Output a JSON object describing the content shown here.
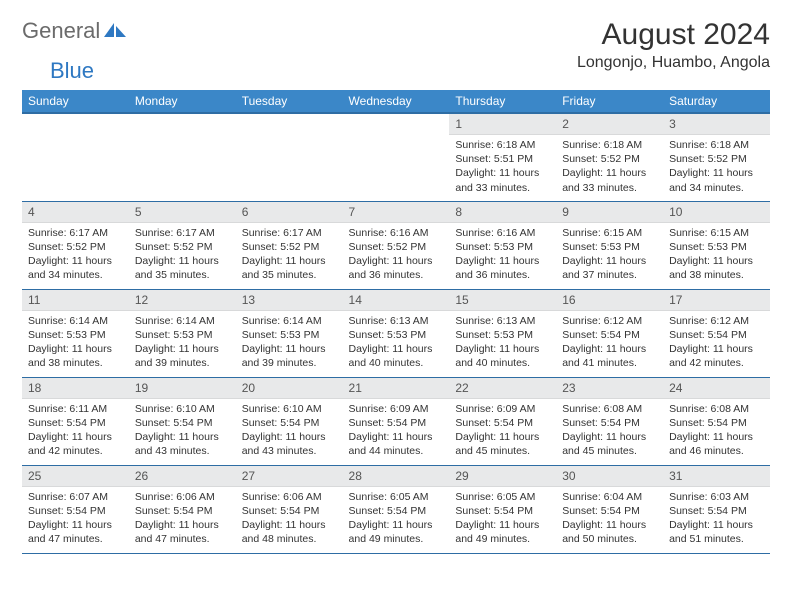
{
  "logo": {
    "gray": "General",
    "blue": "Blue"
  },
  "title": "August 2024",
  "location": "Longonjo, Huambo, Angola",
  "colors": {
    "header_bg": "#3b87c8",
    "border": "#2e6da4",
    "daynum_bg": "#e8e9ea"
  },
  "weekdays": [
    "Sunday",
    "Monday",
    "Tuesday",
    "Wednesday",
    "Thursday",
    "Friday",
    "Saturday"
  ],
  "weeks": [
    [
      {
        "n": "",
        "sr": "",
        "ss": "",
        "dl": ""
      },
      {
        "n": "",
        "sr": "",
        "ss": "",
        "dl": ""
      },
      {
        "n": "",
        "sr": "",
        "ss": "",
        "dl": ""
      },
      {
        "n": "",
        "sr": "",
        "ss": "",
        "dl": ""
      },
      {
        "n": "1",
        "sr": "Sunrise: 6:18 AM",
        "ss": "Sunset: 5:51 PM",
        "dl": "Daylight: 11 hours and 33 minutes."
      },
      {
        "n": "2",
        "sr": "Sunrise: 6:18 AM",
        "ss": "Sunset: 5:52 PM",
        "dl": "Daylight: 11 hours and 33 minutes."
      },
      {
        "n": "3",
        "sr": "Sunrise: 6:18 AM",
        "ss": "Sunset: 5:52 PM",
        "dl": "Daylight: 11 hours and 34 minutes."
      }
    ],
    [
      {
        "n": "4",
        "sr": "Sunrise: 6:17 AM",
        "ss": "Sunset: 5:52 PM",
        "dl": "Daylight: 11 hours and 34 minutes."
      },
      {
        "n": "5",
        "sr": "Sunrise: 6:17 AM",
        "ss": "Sunset: 5:52 PM",
        "dl": "Daylight: 11 hours and 35 minutes."
      },
      {
        "n": "6",
        "sr": "Sunrise: 6:17 AM",
        "ss": "Sunset: 5:52 PM",
        "dl": "Daylight: 11 hours and 35 minutes."
      },
      {
        "n": "7",
        "sr": "Sunrise: 6:16 AM",
        "ss": "Sunset: 5:52 PM",
        "dl": "Daylight: 11 hours and 36 minutes."
      },
      {
        "n": "8",
        "sr": "Sunrise: 6:16 AM",
        "ss": "Sunset: 5:53 PM",
        "dl": "Daylight: 11 hours and 36 minutes."
      },
      {
        "n": "9",
        "sr": "Sunrise: 6:15 AM",
        "ss": "Sunset: 5:53 PM",
        "dl": "Daylight: 11 hours and 37 minutes."
      },
      {
        "n": "10",
        "sr": "Sunrise: 6:15 AM",
        "ss": "Sunset: 5:53 PM",
        "dl": "Daylight: 11 hours and 38 minutes."
      }
    ],
    [
      {
        "n": "11",
        "sr": "Sunrise: 6:14 AM",
        "ss": "Sunset: 5:53 PM",
        "dl": "Daylight: 11 hours and 38 minutes."
      },
      {
        "n": "12",
        "sr": "Sunrise: 6:14 AM",
        "ss": "Sunset: 5:53 PM",
        "dl": "Daylight: 11 hours and 39 minutes."
      },
      {
        "n": "13",
        "sr": "Sunrise: 6:14 AM",
        "ss": "Sunset: 5:53 PM",
        "dl": "Daylight: 11 hours and 39 minutes."
      },
      {
        "n": "14",
        "sr": "Sunrise: 6:13 AM",
        "ss": "Sunset: 5:53 PM",
        "dl": "Daylight: 11 hours and 40 minutes."
      },
      {
        "n": "15",
        "sr": "Sunrise: 6:13 AM",
        "ss": "Sunset: 5:53 PM",
        "dl": "Daylight: 11 hours and 40 minutes."
      },
      {
        "n": "16",
        "sr": "Sunrise: 6:12 AM",
        "ss": "Sunset: 5:54 PM",
        "dl": "Daylight: 11 hours and 41 minutes."
      },
      {
        "n": "17",
        "sr": "Sunrise: 6:12 AM",
        "ss": "Sunset: 5:54 PM",
        "dl": "Daylight: 11 hours and 42 minutes."
      }
    ],
    [
      {
        "n": "18",
        "sr": "Sunrise: 6:11 AM",
        "ss": "Sunset: 5:54 PM",
        "dl": "Daylight: 11 hours and 42 minutes."
      },
      {
        "n": "19",
        "sr": "Sunrise: 6:10 AM",
        "ss": "Sunset: 5:54 PM",
        "dl": "Daylight: 11 hours and 43 minutes."
      },
      {
        "n": "20",
        "sr": "Sunrise: 6:10 AM",
        "ss": "Sunset: 5:54 PM",
        "dl": "Daylight: 11 hours and 43 minutes."
      },
      {
        "n": "21",
        "sr": "Sunrise: 6:09 AM",
        "ss": "Sunset: 5:54 PM",
        "dl": "Daylight: 11 hours and 44 minutes."
      },
      {
        "n": "22",
        "sr": "Sunrise: 6:09 AM",
        "ss": "Sunset: 5:54 PM",
        "dl": "Daylight: 11 hours and 45 minutes."
      },
      {
        "n": "23",
        "sr": "Sunrise: 6:08 AM",
        "ss": "Sunset: 5:54 PM",
        "dl": "Daylight: 11 hours and 45 minutes."
      },
      {
        "n": "24",
        "sr": "Sunrise: 6:08 AM",
        "ss": "Sunset: 5:54 PM",
        "dl": "Daylight: 11 hours and 46 minutes."
      }
    ],
    [
      {
        "n": "25",
        "sr": "Sunrise: 6:07 AM",
        "ss": "Sunset: 5:54 PM",
        "dl": "Daylight: 11 hours and 47 minutes."
      },
      {
        "n": "26",
        "sr": "Sunrise: 6:06 AM",
        "ss": "Sunset: 5:54 PM",
        "dl": "Daylight: 11 hours and 47 minutes."
      },
      {
        "n": "27",
        "sr": "Sunrise: 6:06 AM",
        "ss": "Sunset: 5:54 PM",
        "dl": "Daylight: 11 hours and 48 minutes."
      },
      {
        "n": "28",
        "sr": "Sunrise: 6:05 AM",
        "ss": "Sunset: 5:54 PM",
        "dl": "Daylight: 11 hours and 49 minutes."
      },
      {
        "n": "29",
        "sr": "Sunrise: 6:05 AM",
        "ss": "Sunset: 5:54 PM",
        "dl": "Daylight: 11 hours and 49 minutes."
      },
      {
        "n": "30",
        "sr": "Sunrise: 6:04 AM",
        "ss": "Sunset: 5:54 PM",
        "dl": "Daylight: 11 hours and 50 minutes."
      },
      {
        "n": "31",
        "sr": "Sunrise: 6:03 AM",
        "ss": "Sunset: 5:54 PM",
        "dl": "Daylight: 11 hours and 51 minutes."
      }
    ]
  ]
}
